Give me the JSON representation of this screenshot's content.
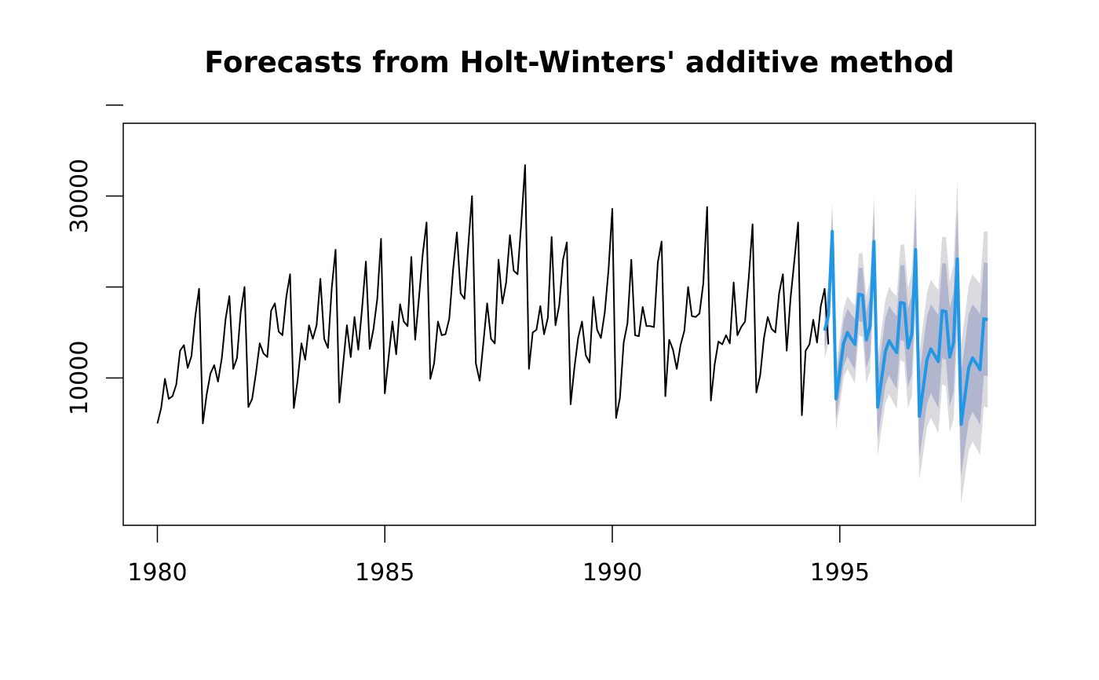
{
  "chart_data": {
    "type": "line",
    "title": "Forecasts from Holt-Winters' additive method",
    "xlabel": "",
    "ylabel": "",
    "xlim": [
      1979.25,
      1999.3
    ],
    "ylim": [
      -6200,
      38000
    ],
    "grid": false,
    "x_ticks": [
      1980,
      1985,
      1990,
      1995
    ],
    "x_tick_labels": [
      "1980",
      "1985",
      "1990",
      "1995"
    ],
    "y_ticks": [
      10000,
      20000,
      30000,
      40000
    ],
    "y_tick_labels": [
      "10000",
      "",
      "30000",
      ""
    ],
    "series": [
      {
        "role": "observed",
        "color": "#000000",
        "x_start": 1980.0,
        "x_step": 0.083333,
        "values": [
          5000,
          6700,
          9900,
          7700,
          8000,
          9300,
          13000,
          13600,
          11100,
          12400,
          16800,
          19800,
          5000,
          8200,
          10500,
          11400,
          9600,
          12200,
          16500,
          19000,
          11000,
          12200,
          17300,
          20000,
          6800,
          7700,
          10500,
          13800,
          12700,
          12300,
          17400,
          18200,
          15100,
          14700,
          18900,
          21400,
          6700,
          9800,
          13800,
          12000,
          15800,
          14300,
          15800,
          20900,
          14300,
          13300,
          19900,
          24100,
          7300,
          11500,
          15800,
          12300,
          16700,
          13100,
          17700,
          22800,
          13200,
          15400,
          18700,
          25300,
          8300,
          12300,
          16200,
          12600,
          18100,
          16200,
          15700,
          23300,
          14200,
          18800,
          23600,
          27100,
          9900,
          11600,
          16200,
          14700,
          14800,
          16500,
          21900,
          26000,
          19300,
          18700,
          24500,
          30000,
          11600,
          9700,
          13900,
          18200,
          14300,
          13800,
          23000,
          18200,
          20500,
          25700,
          21800,
          21400,
          27100,
          33400,
          11000,
          15000,
          15300,
          17900,
          14800,
          16600,
          25500,
          15800,
          18000,
          23000,
          24900,
          7100,
          11100,
          14400,
          16200,
          12500,
          11700,
          18900,
          15300,
          14400,
          17200,
          21900,
          28600,
          5600,
          7800,
          13900,
          16000,
          23000,
          14700,
          14600,
          17800,
          15700,
          15700,
          15600,
          22700,
          25000,
          8000,
          14200,
          13100,
          11000,
          13600,
          15200,
          20000,
          16800,
          16700,
          17100,
          20400,
          28800,
          7500,
          11500,
          14000,
          13700,
          14700,
          13800,
          20500,
          14700,
          15600,
          16200,
          21100,
          26900,
          8400,
          10300,
          14400,
          16700,
          15400,
          15000,
          19300,
          21400,
          13000,
          18700,
          22800,
          27100,
          5900,
          13000,
          13700,
          16400,
          13900,
          17900,
          19800,
          13700
        ]
      },
      {
        "role": "forecast",
        "color": "#2297e6",
        "x_start": 1994.667,
        "x_step": 0.083333,
        "values": [
          15200,
          16900,
          26100,
          7700,
          10700,
          13800,
          15000,
          14300,
          13700,
          19200,
          19100,
          14200,
          15700,
          25000,
          6800,
          9800,
          12900,
          14100,
          13400,
          12800,
          18300,
          18200,
          13300,
          14800,
          24100,
          5800,
          8900,
          12000,
          13200,
          12500,
          11800,
          17400,
          17300,
          12300,
          13900,
          23100,
          4900,
          8000,
          11100,
          12200,
          11600,
          10900,
          16500,
          16400
        ]
      },
      {
        "role": "lo80",
        "values": [
          13200,
          14800,
          23900,
          5400,
          8300,
          11300,
          12400,
          11600,
          10900,
          16300,
          16100,
          11100,
          12400,
          21600,
          3300,
          6200,
          9200,
          10300,
          9500,
          8800,
          14200,
          14000,
          9000,
          10400,
          19600,
          1200,
          4200,
          7200,
          8300,
          7500,
          6700,
          12200,
          12000,
          6900,
          8400,
          17500,
          -800,
          2300,
          5200,
          6300,
          5600,
          4800,
          10300,
          10200
        ]
      },
      {
        "role": "hi80",
        "values": [
          17200,
          19000,
          28300,
          10000,
          13100,
          16300,
          17600,
          17000,
          16500,
          22100,
          22100,
          17300,
          19000,
          28400,
          10300,
          13400,
          16600,
          17900,
          17300,
          16800,
          22400,
          22400,
          17600,
          19200,
          28600,
          10400,
          13600,
          16800,
          18100,
          17500,
          16900,
          22600,
          22600,
          17700,
          19400,
          28700,
          10600,
          13700,
          17000,
          18100,
          17600,
          17000,
          22700,
          22600
        ]
      },
      {
        "role": "lo95",
        "values": [
          12100,
          13700,
          22700,
          4200,
          7000,
          10000,
          11000,
          10200,
          9400,
          14700,
          14500,
          9400,
          10700,
          19800,
          1400,
          4300,
          7200,
          8200,
          7400,
          6600,
          12000,
          11700,
          6700,
          8000,
          17200,
          -1200,
          1700,
          4600,
          5600,
          4800,
          3900,
          9300,
          9100,
          4000,
          5400,
          14400,
          -3900,
          -900,
          2000,
          3000,
          2300,
          1500,
          6900,
          6700
        ]
      },
      {
        "role": "hi95",
        "values": [
          18300,
          20100,
          29500,
          11200,
          14400,
          17600,
          19000,
          18400,
          18000,
          23700,
          23700,
          19000,
          20700,
          30200,
          12200,
          15300,
          18600,
          20000,
          19400,
          19000,
          24600,
          24700,
          19900,
          21600,
          31000,
          12800,
          16100,
          19400,
          20800,
          20200,
          19700,
          25500,
          25500,
          20600,
          22400,
          31800,
          13700,
          16900,
          20200,
          21400,
          20900,
          20300,
          26100,
          26100
        ]
      }
    ],
    "band_colors": {
      "band95": "#dbdbdf",
      "band80": "#b1b5ce"
    }
  }
}
